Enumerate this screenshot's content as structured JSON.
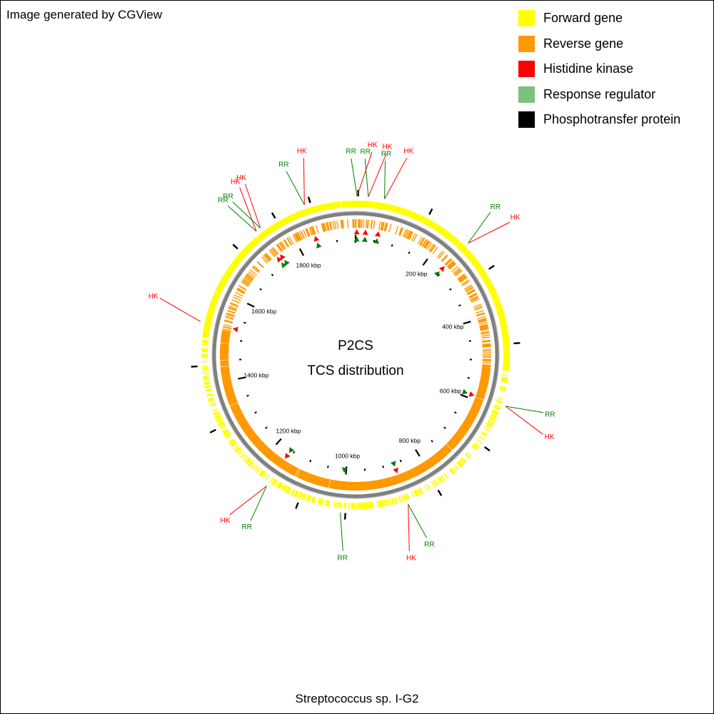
{
  "credit": "Image generated by CGView",
  "organism": "Streptococcus sp. I-G2",
  "center": {
    "line1": "P2CS",
    "line2": "TCS distribution"
  },
  "colors": {
    "forward": "#ffff00",
    "reverse": "#ff9900",
    "hk": "#ff0000",
    "rr": "#008000",
    "rr_legend": "#7fbf7f",
    "phospho": "#000000",
    "backbone": "#808080"
  },
  "legend": [
    {
      "label": "Forward gene",
      "color": "#ffff00"
    },
    {
      "label": "Reverse gene",
      "color": "#ff9900"
    },
    {
      "label": "Histidine kinase",
      "color": "#ff0000"
    },
    {
      "label": "Response regulator",
      "color": "#7fbf7f"
    },
    {
      "label": "Phosphotransfer protein",
      "color": "#000000"
    }
  ],
  "chart_data": {
    "type": "circular-genome-map",
    "genome_length_kbp": 1950,
    "tick_labels": [
      {
        "kbp": 200,
        "label": "200 kbp"
      },
      {
        "kbp": 400,
        "label": "400 kbp"
      },
      {
        "kbp": 600,
        "label": "600 kbp"
      },
      {
        "kbp": 800,
        "label": "800 kbp"
      },
      {
        "kbp": 1000,
        "label": "1000 kbp"
      },
      {
        "kbp": 1200,
        "label": "1200 kbp"
      },
      {
        "kbp": 1400,
        "label": "1400 kbp"
      },
      {
        "kbp": 1600,
        "label": "1600 kbp"
      },
      {
        "kbp": 1800,
        "label": "1800 kbp"
      }
    ],
    "features": [
      {
        "type": "HK",
        "label": "HK",
        "kbp": 3
      },
      {
        "type": "RR",
        "label": "RR",
        "kbp": 3
      },
      {
        "type": "HK",
        "label": "HK",
        "kbp": 25
      },
      {
        "type": "RR",
        "label": "RR",
        "kbp": 25
      },
      {
        "type": "HK",
        "label": "HK",
        "kbp": 57
      },
      {
        "type": "RR",
        "label": "RR",
        "kbp": 57
      },
      {
        "type": "HK",
        "label": "HK",
        "kbp": 245
      },
      {
        "type": "RR",
        "label": "RR",
        "kbp": 245
      },
      {
        "type": "HK",
        "label": "HK",
        "kbp": 590
      },
      {
        "type": "RR",
        "label": "RR",
        "kbp": 590
      },
      {
        "type": "HK",
        "label": "HK",
        "kbp": 870
      },
      {
        "type": "RR",
        "label": "RR",
        "kbp": 870
      },
      {
        "type": "RR",
        "label": "RR",
        "kbp": 1005
      },
      {
        "type": "HK",
        "label": "HK",
        "kbp": 1160
      },
      {
        "type": "RR",
        "label": "RR",
        "kbp": 1160
      },
      {
        "type": "HK",
        "label": "HK",
        "kbp": 1528
      },
      {
        "type": "HK",
        "label": "HK",
        "kbp": 1740
      },
      {
        "type": "RR",
        "label": "RR",
        "kbp": 1740
      },
      {
        "type": "HK",
        "label": "HK",
        "kbp": 1750
      },
      {
        "type": "RR",
        "label": "RR",
        "kbp": 1750
      },
      {
        "type": "HK",
        "label": "HK",
        "kbp": 1848
      },
      {
        "type": "RR",
        "label": "RR",
        "kbp": 1848
      }
    ],
    "phosphotransfer_kbp": [
      5,
      150,
      310,
      465,
      680,
      805,
      995,
      1090,
      1310,
      1440,
      1690,
      1785,
      1860
    ]
  }
}
